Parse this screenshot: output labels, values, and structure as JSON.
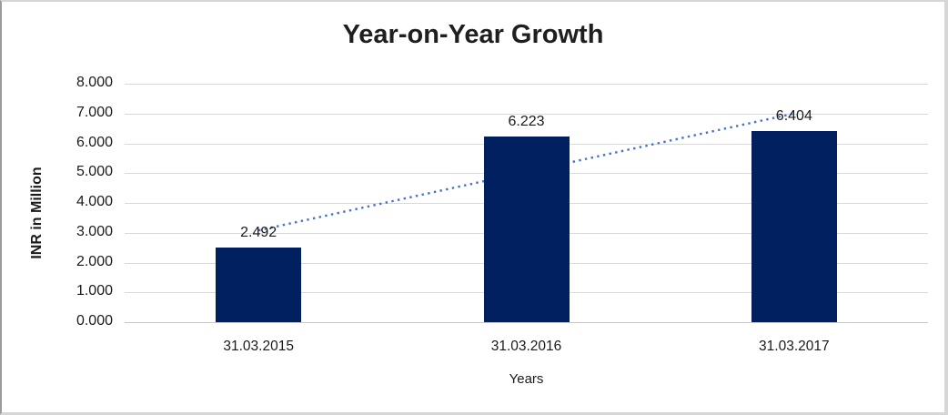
{
  "chart_data": {
    "type": "bar",
    "title": "Year-on-Year Growth",
    "categories": [
      "31.03.2015",
      "31.03.2016",
      "31.03.2017"
    ],
    "values": [
      2.492,
      6.223,
      6.404
    ],
    "value_labels": [
      "2.492",
      "6.223",
      "6.404"
    ],
    "xlabel": "Years",
    "ylabel": "INR in Million",
    "ylim": [
      0,
      8
    ],
    "ytick_labels": [
      "0.000",
      "1.000",
      "2.000",
      "3.000",
      "4.000",
      "5.000",
      "6.000",
      "7.000",
      "8.000"
    ],
    "grid": true,
    "legend": "none",
    "bar_color": "#002060",
    "trendline": {
      "type": "linear",
      "style": "dotted",
      "color": "#4472C4",
      "start_value": 3.08,
      "end_value": 7.0
    }
  }
}
